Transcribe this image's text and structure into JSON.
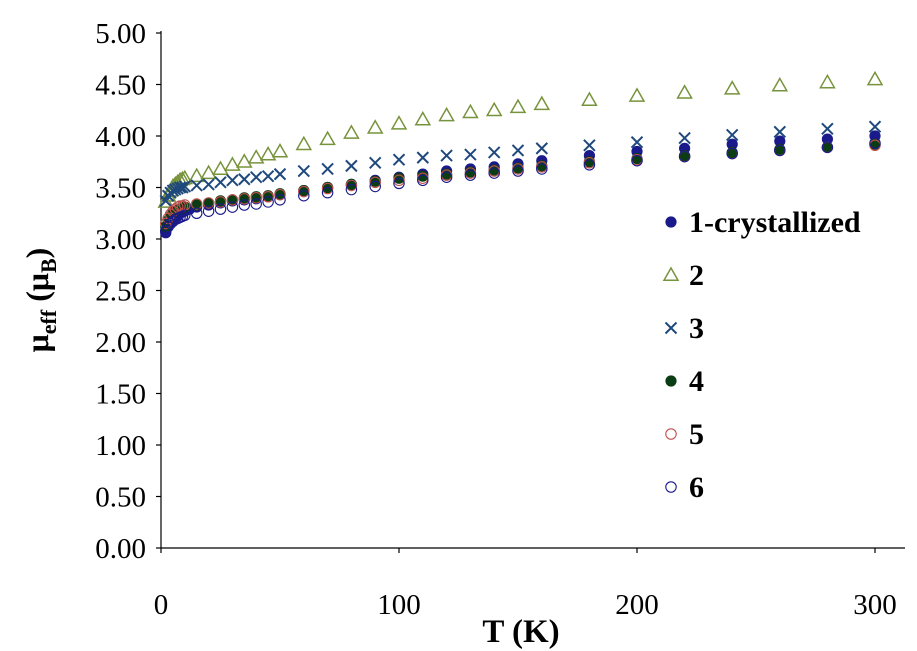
{
  "chart_data": {
    "type": "scatter",
    "title": "",
    "xlabel": "T (K)",
    "ylabel": {
      "base": "μ",
      "sub1": "eff",
      "mid": " (μ",
      "sub2": "B",
      "end": ")"
    },
    "xlim": [
      0,
      300
    ],
    "ylim": [
      0,
      5
    ],
    "x_ticks": [
      "0",
      "100",
      "200",
      "300"
    ],
    "y_ticks": [
      "0.00",
      "0.50",
      "1.00",
      "1.50",
      "2.00",
      "2.50",
      "3.00",
      "3.50",
      "4.00",
      "4.50",
      "5.00"
    ],
    "grid": false,
    "legend_position": "right",
    "series": [
      {
        "name": "1-crystallized",
        "marker": "filled-circle",
        "color": "#1a1a8c",
        "points": [
          [
            2,
            3.06
          ],
          [
            3,
            3.12
          ],
          [
            4,
            3.16
          ],
          [
            5,
            3.19
          ],
          [
            6,
            3.21
          ],
          [
            7,
            3.23
          ],
          [
            8,
            3.25
          ],
          [
            9,
            3.26
          ],
          [
            10,
            3.27
          ],
          [
            12,
            3.29
          ],
          [
            15,
            3.31
          ],
          [
            20,
            3.33
          ],
          [
            25,
            3.35
          ],
          [
            30,
            3.37
          ],
          [
            35,
            3.38
          ],
          [
            40,
            3.39
          ],
          [
            45,
            3.41
          ],
          [
            50,
            3.43
          ],
          [
            60,
            3.47
          ],
          [
            70,
            3.5
          ],
          [
            80,
            3.53
          ],
          [
            90,
            3.57
          ],
          [
            100,
            3.6
          ],
          [
            110,
            3.63
          ],
          [
            120,
            3.66
          ],
          [
            130,
            3.68
          ],
          [
            140,
            3.7
          ],
          [
            150,
            3.73
          ],
          [
            160,
            3.76
          ],
          [
            180,
            3.81
          ],
          [
            200,
            3.85
          ],
          [
            220,
            3.88
          ],
          [
            240,
            3.92
          ],
          [
            260,
            3.95
          ],
          [
            280,
            3.97
          ],
          [
            300,
            4.0
          ]
        ]
      },
      {
        "name": "2",
        "marker": "open-triangle",
        "color": "#77933c",
        "points": [
          [
            2,
            3.36
          ],
          [
            3,
            3.42
          ],
          [
            4,
            3.47
          ],
          [
            5,
            3.51
          ],
          [
            6,
            3.53
          ],
          [
            7,
            3.55
          ],
          [
            8,
            3.57
          ],
          [
            9,
            3.58
          ],
          [
            10,
            3.59
          ],
          [
            15,
            3.61
          ],
          [
            20,
            3.64
          ],
          [
            25,
            3.68
          ],
          [
            30,
            3.72
          ],
          [
            35,
            3.75
          ],
          [
            40,
            3.79
          ],
          [
            45,
            3.82
          ],
          [
            50,
            3.85
          ],
          [
            60,
            3.92
          ],
          [
            70,
            3.97
          ],
          [
            80,
            4.03
          ],
          [
            90,
            4.08
          ],
          [
            100,
            4.12
          ],
          [
            110,
            4.16
          ],
          [
            120,
            4.2
          ],
          [
            130,
            4.23
          ],
          [
            140,
            4.25
          ],
          [
            150,
            4.28
          ],
          [
            160,
            4.31
          ],
          [
            180,
            4.35
          ],
          [
            200,
            4.39
          ],
          [
            220,
            4.42
          ],
          [
            240,
            4.46
          ],
          [
            260,
            4.49
          ],
          [
            280,
            4.52
          ],
          [
            300,
            4.55
          ]
        ]
      },
      {
        "name": "3",
        "marker": "cross",
        "color": "#1f497d",
        "points": [
          [
            2,
            3.37
          ],
          [
            3,
            3.42
          ],
          [
            4,
            3.45
          ],
          [
            5,
            3.47
          ],
          [
            6,
            3.48
          ],
          [
            7,
            3.49
          ],
          [
            8,
            3.5
          ],
          [
            9,
            3.5
          ],
          [
            10,
            3.51
          ],
          [
            15,
            3.52
          ],
          [
            20,
            3.53
          ],
          [
            25,
            3.55
          ],
          [
            30,
            3.57
          ],
          [
            35,
            3.58
          ],
          [
            40,
            3.6
          ],
          [
            45,
            3.61
          ],
          [
            50,
            3.63
          ],
          [
            60,
            3.66
          ],
          [
            70,
            3.68
          ],
          [
            80,
            3.71
          ],
          [
            90,
            3.74
          ],
          [
            100,
            3.77
          ],
          [
            110,
            3.79
          ],
          [
            120,
            3.81
          ],
          [
            130,
            3.82
          ],
          [
            140,
            3.84
          ],
          [
            150,
            3.86
          ],
          [
            160,
            3.88
          ],
          [
            180,
            3.91
          ],
          [
            200,
            3.94
          ],
          [
            220,
            3.98
          ],
          [
            240,
            4.01
          ],
          [
            260,
            4.04
          ],
          [
            280,
            4.07
          ],
          [
            300,
            4.09
          ]
        ]
      },
      {
        "name": "4",
        "marker": "filled-circle",
        "color": "#0a3d14",
        "points": [
          [
            2,
            3.12
          ],
          [
            3,
            3.18
          ],
          [
            4,
            3.22
          ],
          [
            5,
            3.25
          ],
          [
            6,
            3.27
          ],
          [
            7,
            3.28
          ],
          [
            8,
            3.29
          ],
          [
            9,
            3.3
          ],
          [
            10,
            3.31
          ],
          [
            15,
            3.33
          ],
          [
            20,
            3.35
          ],
          [
            25,
            3.37
          ],
          [
            30,
            3.38
          ],
          [
            35,
            3.4
          ],
          [
            40,
            3.41
          ],
          [
            45,
            3.42
          ],
          [
            50,
            3.44
          ],
          [
            60,
            3.47
          ],
          [
            70,
            3.5
          ],
          [
            80,
            3.53
          ],
          [
            90,
            3.56
          ],
          [
            100,
            3.59
          ],
          [
            110,
            3.61
          ],
          [
            120,
            3.63
          ],
          [
            130,
            3.65
          ],
          [
            140,
            3.67
          ],
          [
            150,
            3.69
          ],
          [
            160,
            3.71
          ],
          [
            180,
            3.75
          ],
          [
            200,
            3.78
          ],
          [
            220,
            3.81
          ],
          [
            240,
            3.84
          ],
          [
            260,
            3.87
          ],
          [
            280,
            3.89
          ],
          [
            300,
            3.92
          ]
        ]
      },
      {
        "name": "5",
        "marker": "open-circle",
        "color": "#c0504d",
        "points": [
          [
            2,
            3.15
          ],
          [
            3,
            3.2
          ],
          [
            4,
            3.24
          ],
          [
            5,
            3.27
          ],
          [
            6,
            3.29
          ],
          [
            7,
            3.31
          ],
          [
            8,
            3.32
          ],
          [
            9,
            3.32
          ],
          [
            10,
            3.33
          ],
          [
            15,
            3.34
          ],
          [
            20,
            3.35
          ],
          [
            25,
            3.36
          ],
          [
            30,
            3.38
          ],
          [
            35,
            3.39
          ],
          [
            40,
            3.4
          ],
          [
            45,
            3.41
          ],
          [
            50,
            3.43
          ],
          [
            60,
            3.46
          ],
          [
            70,
            3.49
          ],
          [
            80,
            3.52
          ],
          [
            90,
            3.55
          ],
          [
            100,
            3.57
          ],
          [
            110,
            3.59
          ],
          [
            120,
            3.62
          ],
          [
            130,
            3.64
          ],
          [
            140,
            3.66
          ],
          [
            150,
            3.68
          ],
          [
            160,
            3.7
          ],
          [
            180,
            3.74
          ],
          [
            200,
            3.77
          ],
          [
            220,
            3.8
          ],
          [
            240,
            3.83
          ],
          [
            260,
            3.86
          ],
          [
            280,
            3.89
          ],
          [
            300,
            3.91
          ]
        ]
      },
      {
        "name": "6",
        "marker": "open-circle",
        "color": "#1a1a8c",
        "points": [
          [
            2,
            3.08
          ],
          [
            3,
            3.12
          ],
          [
            4,
            3.15
          ],
          [
            5,
            3.17
          ],
          [
            6,
            3.19
          ],
          [
            7,
            3.2
          ],
          [
            8,
            3.21
          ],
          [
            9,
            3.22
          ],
          [
            10,
            3.23
          ],
          [
            15,
            3.25
          ],
          [
            20,
            3.27
          ],
          [
            25,
            3.29
          ],
          [
            30,
            3.31
          ],
          [
            35,
            3.33
          ],
          [
            40,
            3.34
          ],
          [
            45,
            3.36
          ],
          [
            50,
            3.38
          ],
          [
            60,
            3.42
          ],
          [
            70,
            3.45
          ],
          [
            80,
            3.48
          ],
          [
            90,
            3.51
          ],
          [
            100,
            3.54
          ],
          [
            110,
            3.57
          ],
          [
            120,
            3.6
          ],
          [
            130,
            3.62
          ],
          [
            140,
            3.64
          ],
          [
            150,
            3.66
          ],
          [
            160,
            3.68
          ],
          [
            180,
            3.72
          ],
          [
            200,
            3.76
          ],
          [
            220,
            3.8
          ],
          [
            240,
            3.83
          ],
          [
            260,
            3.86
          ],
          [
            280,
            3.89
          ],
          [
            300,
            3.93
          ]
        ]
      }
    ]
  }
}
